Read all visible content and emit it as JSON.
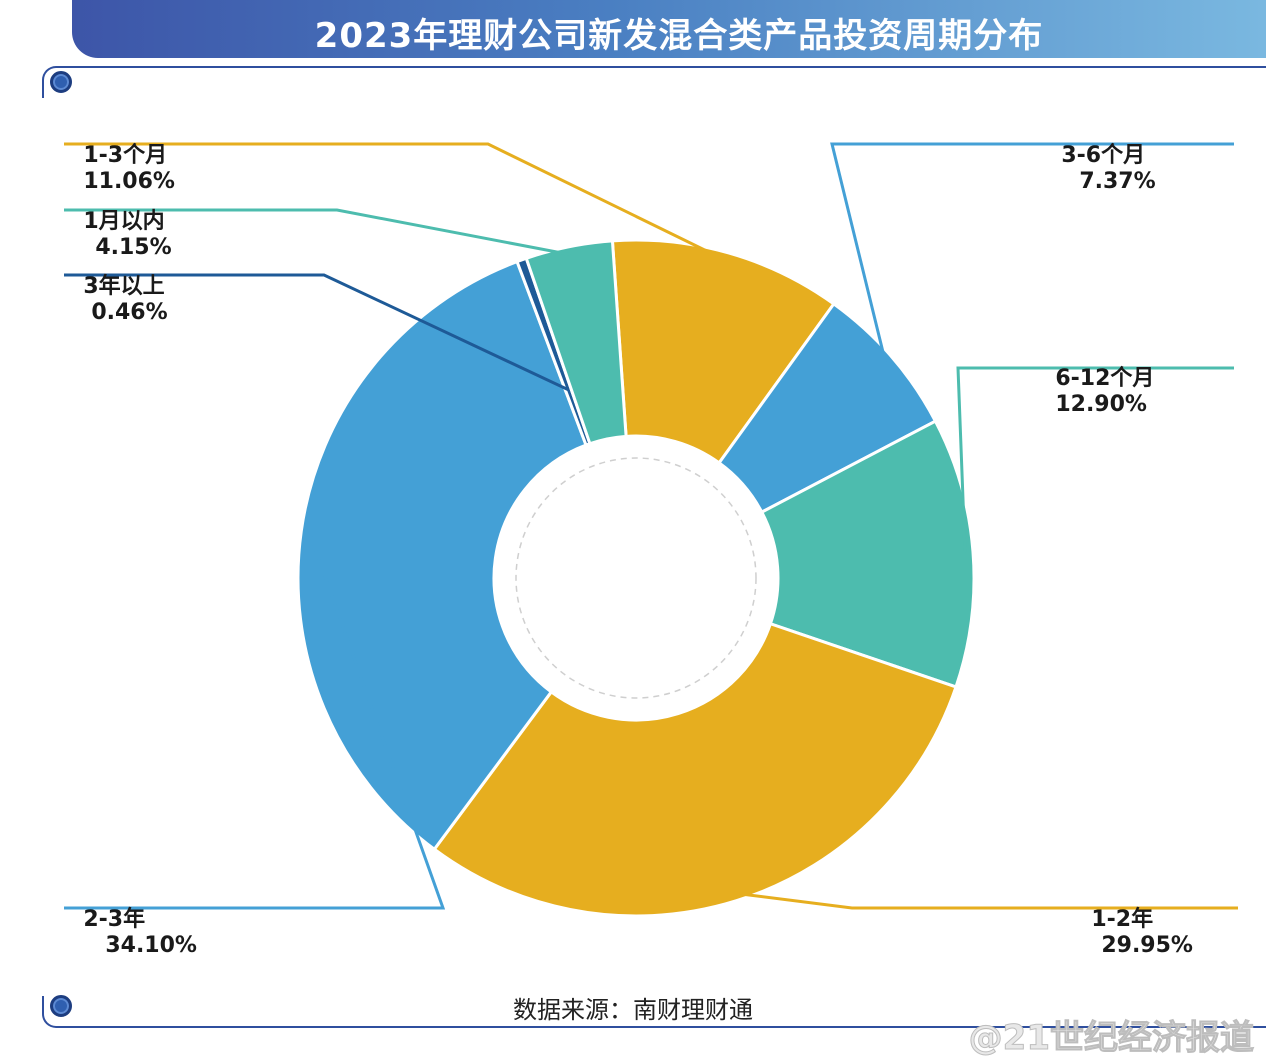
{
  "title": "2023年理财公司新发混合类产品投资周期分布",
  "source": "数据来源：南财理财通",
  "watermark": "@21世纪经济报道",
  "colors": {
    "yellow": "#e6ae1f",
    "blue": "#44a0d6",
    "teal": "#4dbcae",
    "navy": "#1e5a97",
    "frame": "#2f4f9e"
  },
  "chart_data": {
    "type": "pie",
    "donut": true,
    "labels": [
      "1-3个月",
      "3-6个月",
      "6-12个月",
      "1-2年",
      "2-3年",
      "3年以上",
      "1月以内"
    ],
    "values": [
      11.06,
      7.37,
      12.9,
      29.95,
      34.1,
      0.46,
      4.15
    ],
    "value_labels": [
      "11.06%",
      "7.37%",
      "12.90%",
      "29.95%",
      "34.10%",
      "0.46%",
      "4.15%"
    ],
    "colors": [
      "#e6ae1f",
      "#44a0d6",
      "#4dbcae",
      "#e6ae1f",
      "#44a0d6",
      "#1e5a97",
      "#4dbcae"
    ]
  }
}
